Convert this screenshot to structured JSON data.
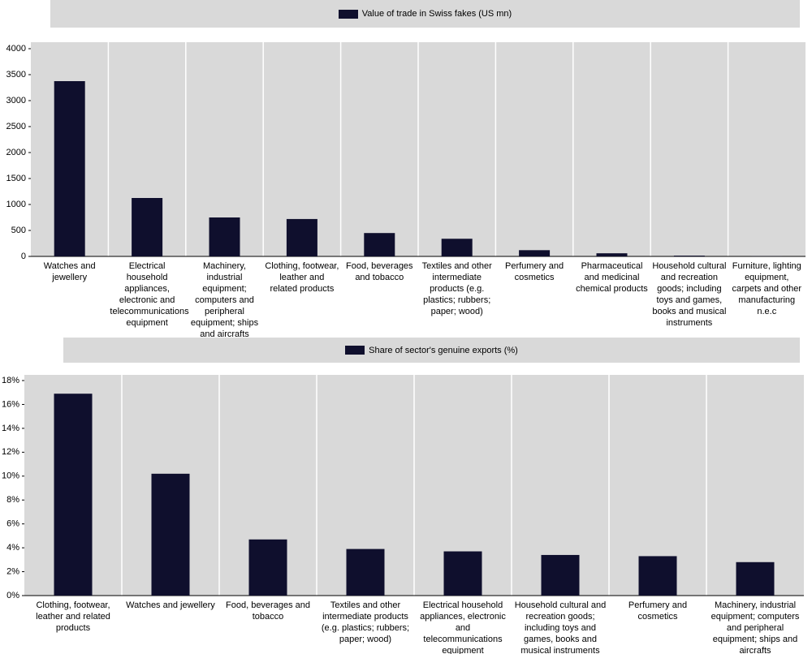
{
  "chart_data": [
    {
      "type": "bar",
      "categories": [
        "Watches and jewellery",
        "Electrical household appliances, electronic and telecommunications equipment",
        "Machinery, industrial equipment; computers and peripheral equipment; ships and aircrafts",
        "Clothing, footwear, leather and related products",
        "Food, beverages and tobacco",
        "Textiles and other intermediate products (e.g. plastics; rubbers; paper; wood)",
        "Perfumery and cosmetics",
        "Pharmaceutical and medicinal chemical products",
        "Household cultural and recreation goods;  including toys and games, books and musical instruments",
        "Furniture, lighting equipment, carpets and other manufacturing n.e.c"
      ],
      "series": [
        {
          "name": "Value of trade in Swiss fakes (US mn)",
          "color": "#0f0f2d",
          "values": [
            3375,
            1125,
            750,
            720,
            450,
            340,
            120,
            60,
            15,
            3
          ]
        }
      ],
      "ylim": [
        0,
        4000
      ],
      "yticks": [
        0,
        500,
        1000,
        1500,
        2000,
        2500,
        3000,
        3500,
        4000
      ]
    },
    {
      "type": "bar",
      "categories": [
        "Clothing, footwear, leather and related products",
        "Watches and jewellery",
        "Food, beverages and tobacco",
        "Textiles and other intermediate products (e.g. plastics; rubbers; paper; wood)",
        "Electrical household appliances, electronic and telecommunications equipment",
        "Household cultural and recreation goods; including toys and games, books and musical instruments",
        "Perfumery and cosmetics",
        "Machinery, industrial equipment; computers and peripheral equipment; ships and aircrafts"
      ],
      "series": [
        {
          "name": "Share of sector's genuine exports (%)",
          "color": "#0f0f2d",
          "values": [
            16.9,
            10.2,
            4.7,
            3.9,
            3.7,
            3.4,
            3.3,
            2.8
          ]
        }
      ],
      "ylim": [
        0,
        18
      ],
      "yticks": [
        {
          "value": 0,
          "label": "0%"
        },
        {
          "value": 2,
          "label": "2%"
        },
        {
          "value": 4,
          "label": "4%"
        },
        {
          "value": 6,
          "label": "6%"
        },
        {
          "value": 8,
          "label": "8%"
        },
        {
          "value": 10,
          "label": "10%"
        },
        {
          "value": 12,
          "label": "12%"
        },
        {
          "value": 14,
          "label": "14%"
        },
        {
          "value": 16,
          "label": "16%"
        },
        {
          "value": 18,
          "label": "18%"
        }
      ]
    }
  ]
}
